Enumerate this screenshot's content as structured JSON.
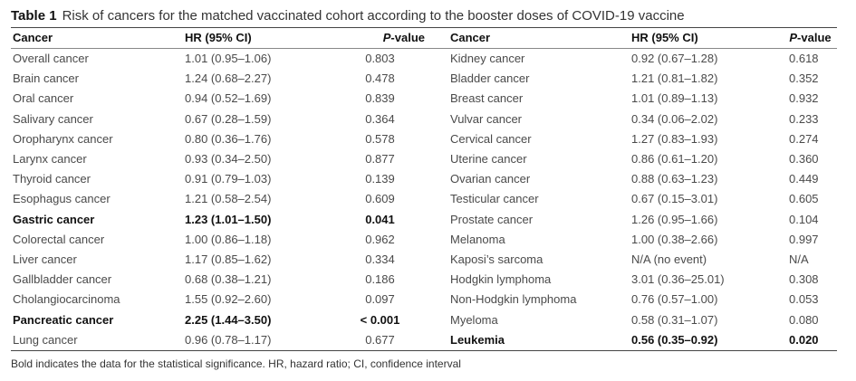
{
  "caption": {
    "label": "Table 1",
    "text": "Risk of cancers for the matched vaccinated cohort according to the booster doses of COVID-19 vaccine"
  },
  "headers": {
    "cancer": "Cancer",
    "hr": "HR (95% CI)",
    "p_prefix": "P",
    "p_suffix": "-value"
  },
  "rows": [
    {
      "left": {
        "cancer": "Overall cancer",
        "hr": "1.01 (0.95–1.06)",
        "p": "0.803",
        "bold": false
      },
      "right": {
        "cancer": "Kidney cancer",
        "hr": "0.92 (0.67–1.28)",
        "p": "0.618",
        "bold": false
      }
    },
    {
      "left": {
        "cancer": "Brain cancer",
        "hr": "1.24 (0.68–2.27)",
        "p": "0.478",
        "bold": false
      },
      "right": {
        "cancer": "Bladder cancer",
        "hr": "1.21 (0.81–1.82)",
        "p": "0.352",
        "bold": false
      }
    },
    {
      "left": {
        "cancer": "Oral cancer",
        "hr": "0.94 (0.52–1.69)",
        "p": "0.839",
        "bold": false
      },
      "right": {
        "cancer": "Breast cancer",
        "hr": "1.01 (0.89–1.13)",
        "p": "0.932",
        "bold": false
      }
    },
    {
      "left": {
        "cancer": "Salivary cancer",
        "hr": "0.67 (0.28–1.59)",
        "p": "0.364",
        "bold": false
      },
      "right": {
        "cancer": "Vulvar cancer",
        "hr": "0.34 (0.06–2.02)",
        "p": "0.233",
        "bold": false
      }
    },
    {
      "left": {
        "cancer": "Oropharynx cancer",
        "hr": "0.80 (0.36–1.76)",
        "p": "0.578",
        "bold": false
      },
      "right": {
        "cancer": "Cervical cancer",
        "hr": "1.27 (0.83–1.93)",
        "p": "0.274",
        "bold": false
      }
    },
    {
      "left": {
        "cancer": "Larynx cancer",
        "hr": "0.93 (0.34–2.50)",
        "p": "0.877",
        "bold": false
      },
      "right": {
        "cancer": "Uterine cancer",
        "hr": "0.86 (0.61–1.20)",
        "p": "0.360",
        "bold": false
      }
    },
    {
      "left": {
        "cancer": "Thyroid cancer",
        "hr": "0.91 (0.79–1.03)",
        "p": "0.139",
        "bold": false
      },
      "right": {
        "cancer": "Ovarian cancer",
        "hr": "0.88 (0.63–1.23)",
        "p": "0.449",
        "bold": false
      }
    },
    {
      "left": {
        "cancer": "Esophagus cancer",
        "hr": "1.21 (0.58–2.54)",
        "p": "0.609",
        "bold": false
      },
      "right": {
        "cancer": "Testicular cancer",
        "hr": "0.67 (0.15–3.01)",
        "p": "0.605",
        "bold": false
      }
    },
    {
      "left": {
        "cancer": "Gastric cancer",
        "hr": "1.23 (1.01–1.50)",
        "p": "0.041",
        "bold": true
      },
      "right": {
        "cancer": "Prostate cancer",
        "hr": "1.26 (0.95–1.66)",
        "p": "0.104",
        "bold": false
      }
    },
    {
      "left": {
        "cancer": "Colorectal cancer",
        "hr": "1.00 (0.86–1.18)",
        "p": "0.962",
        "bold": false
      },
      "right": {
        "cancer": "Melanoma",
        "hr": "1.00 (0.38–2.66)",
        "p": "0.997",
        "bold": false
      }
    },
    {
      "left": {
        "cancer": "Liver cancer",
        "hr": "1.17 (0.85–1.62)",
        "p": "0.334",
        "bold": false
      },
      "right": {
        "cancer": "Kaposi’s sarcoma",
        "hr": "N/A (no event)",
        "p": "N/A",
        "bold": false
      }
    },
    {
      "left": {
        "cancer": "Gallbladder cancer",
        "hr": "0.68 (0.38–1.21)",
        "p": "0.186",
        "bold": false
      },
      "right": {
        "cancer": "Hodgkin lymphoma",
        "hr": "3.01 (0.36–25.01)",
        "p": "0.308",
        "bold": false
      }
    },
    {
      "left": {
        "cancer": "Cholangiocarcinoma",
        "hr": "1.55 (0.92–2.60)",
        "p": "0.097",
        "bold": false
      },
      "right": {
        "cancer": "Non-Hodgkin lymphoma",
        "hr": "0.76 (0.57–1.00)",
        "p": "0.053",
        "bold": false
      }
    },
    {
      "left": {
        "cancer": "Pancreatic cancer",
        "hr": "2.25 (1.44–3.50)",
        "p": "< 0.001",
        "bold": true
      },
      "right": {
        "cancer": "Myeloma",
        "hr": "0.58 (0.31–1.07)",
        "p": "0.080",
        "bold": false
      }
    },
    {
      "left": {
        "cancer": "Lung cancer",
        "hr": "0.96 (0.78–1.17)",
        "p": "0.677",
        "bold": false
      },
      "right": {
        "cancer": "Leukemia",
        "hr": "0.56 (0.35–0.92)",
        "p": "0.020",
        "bold": true
      }
    }
  ],
  "footnote": "Bold indicates the data for the statistical significance. HR, hazard ratio; CI, confidence interval"
}
